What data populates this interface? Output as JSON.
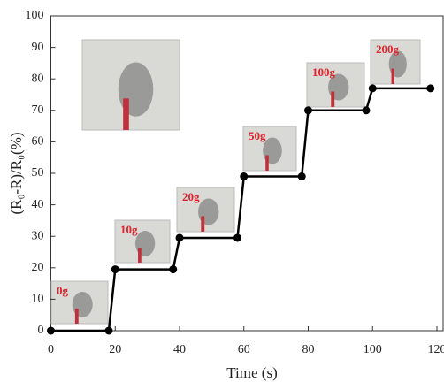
{
  "chart_data": {
    "type": "line",
    "x": [
      0,
      18,
      20,
      38,
      40,
      58,
      60,
      78,
      80,
      98,
      100,
      118
    ],
    "series": [
      {
        "color": "#000000",
        "values": [
          0,
          0,
          19.5,
          19.5,
          29.5,
          29.5,
          49,
          49,
          70,
          70,
          77,
          77
        ]
      }
    ],
    "xlim": [
      0,
      120
    ],
    "xticks": [
      0,
      20,
      40,
      60,
      80,
      100,
      120
    ],
    "ylim": [
      0,
      100
    ],
    "yticks": [
      0,
      10,
      20,
      30,
      40,
      50,
      60,
      70,
      80,
      90,
      100
    ],
    "xlabel": "Time (s)",
    "ylabel": "(R₀-R)/R₀(%)",
    "annotations": [
      "0g",
      "10g",
      "20g",
      "50g",
      "100g",
      "200g"
    ]
  }
}
